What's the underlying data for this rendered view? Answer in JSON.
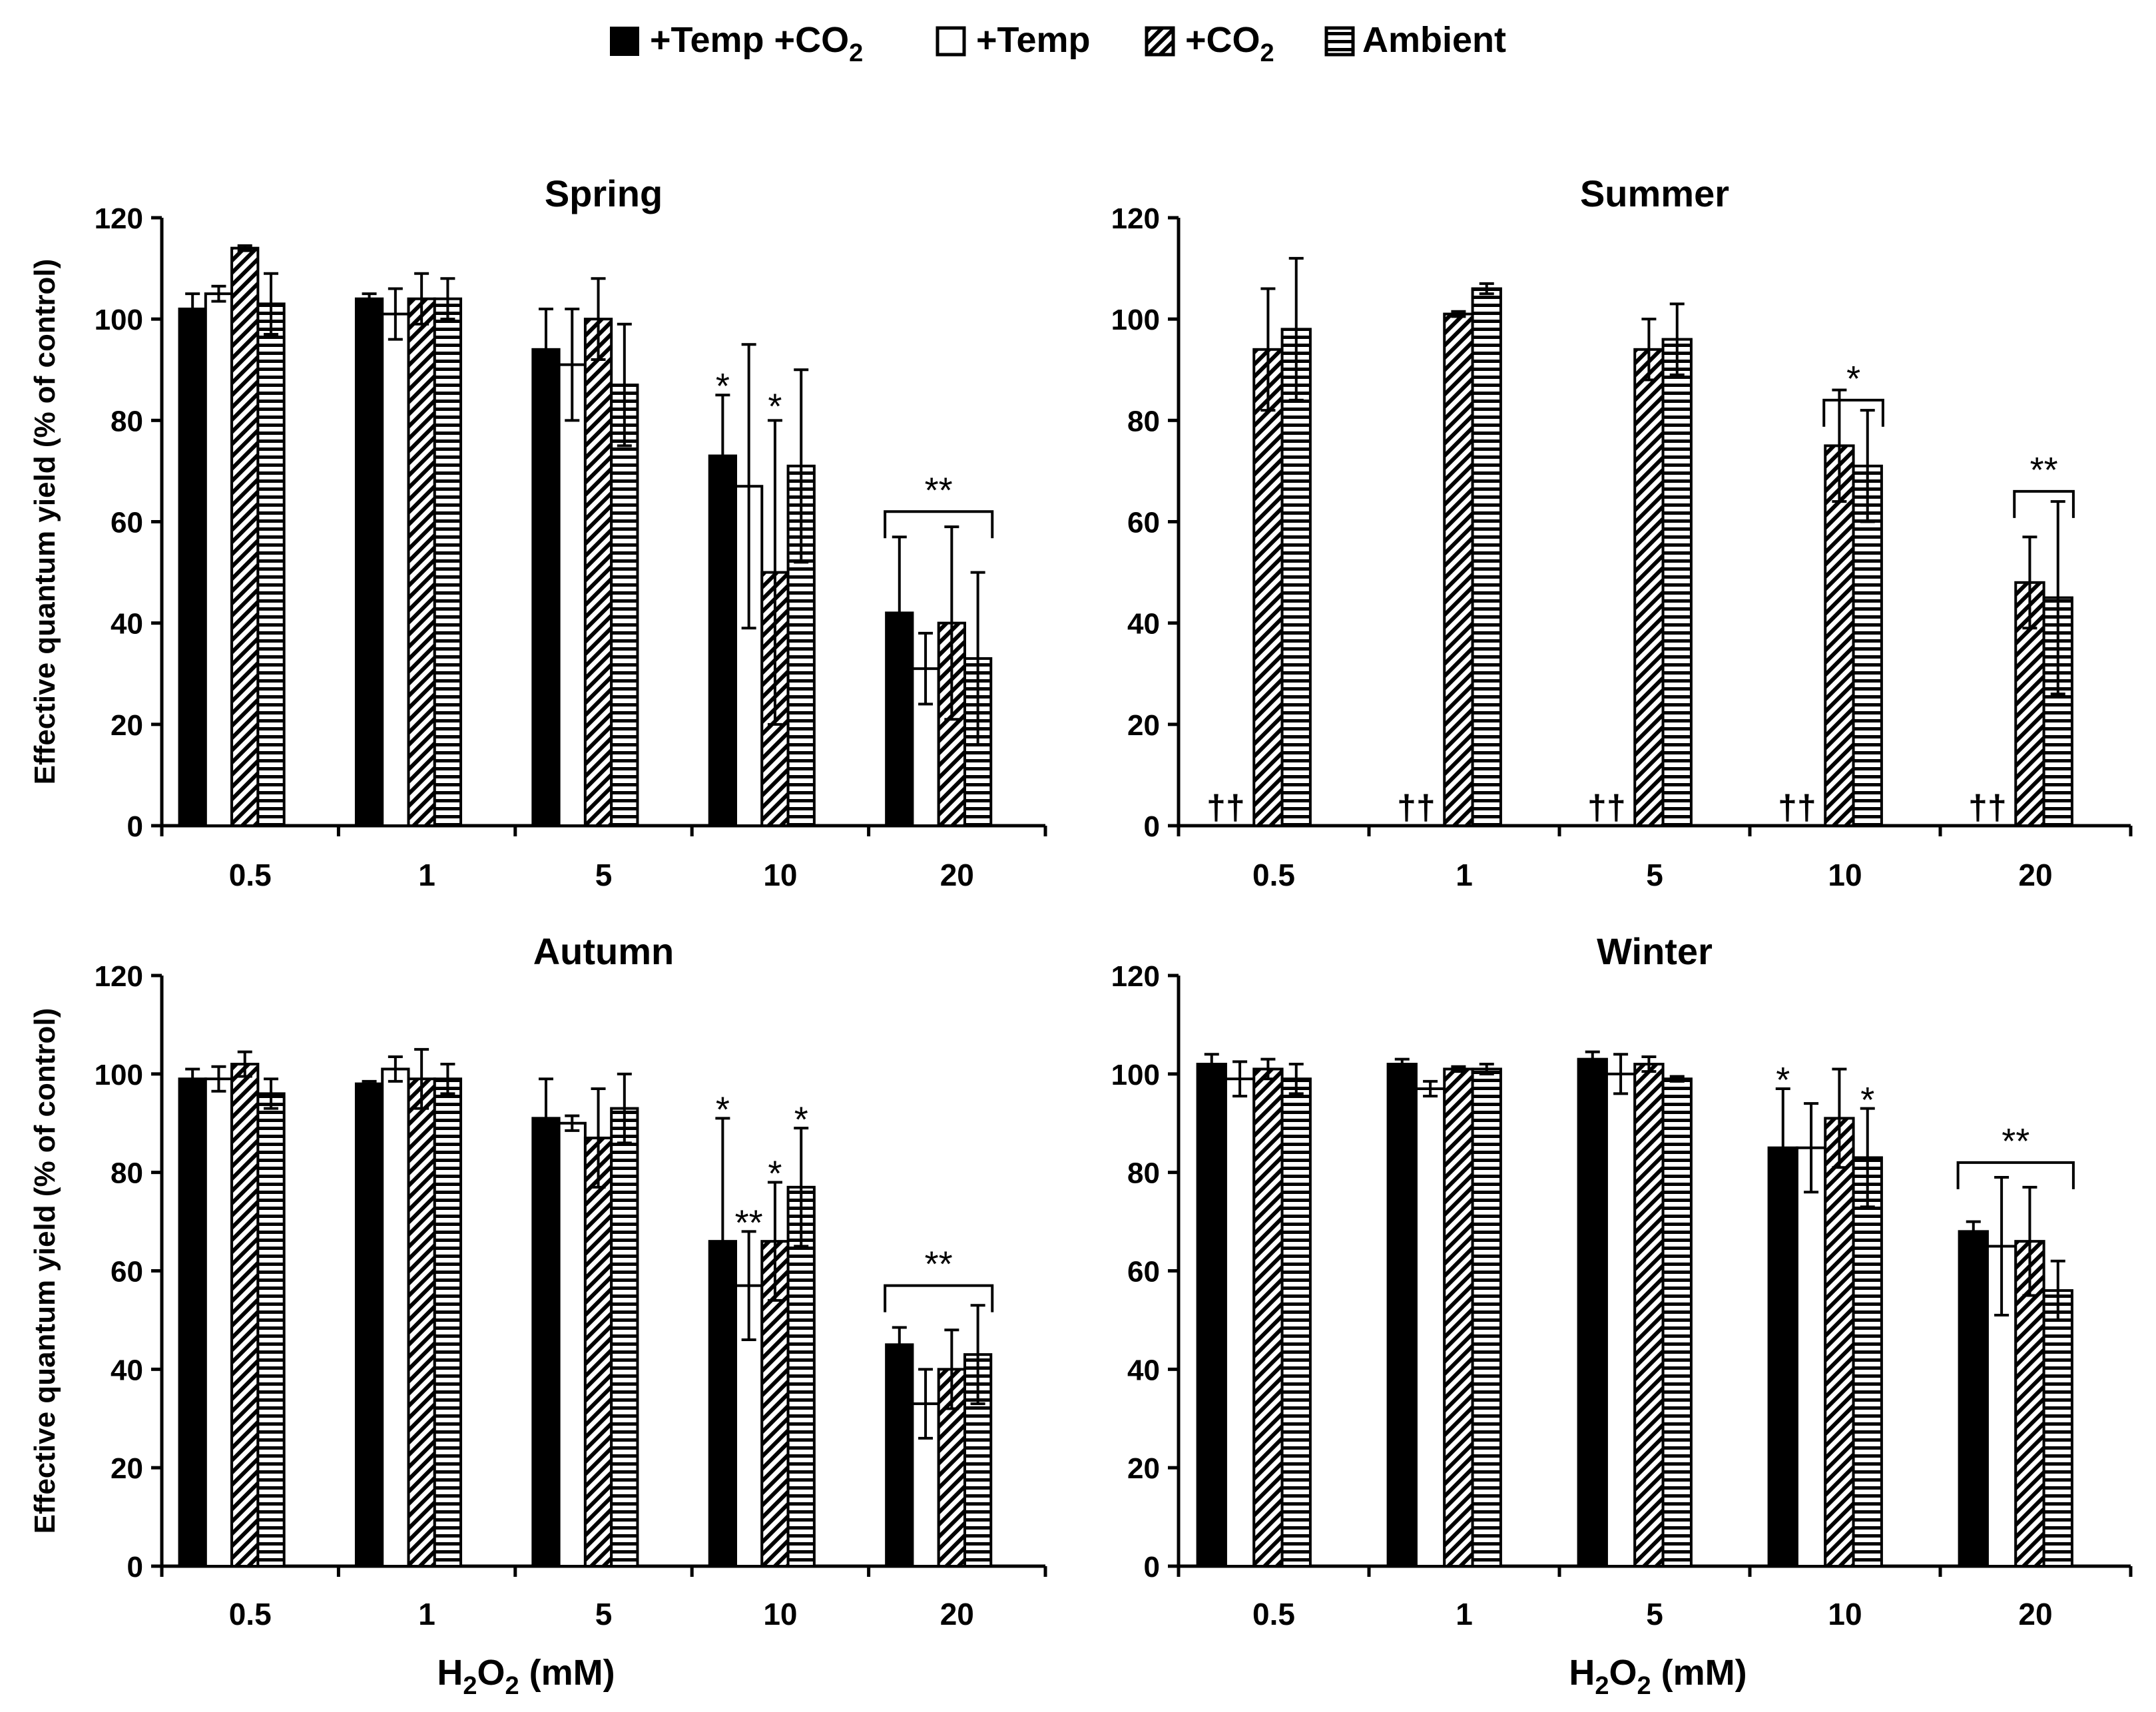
{
  "legend": {
    "items": [
      {
        "label": "+Temp +CO",
        "sub": "2",
        "pattern": "solid"
      },
      {
        "label": "+Temp",
        "sub": "",
        "pattern": "open"
      },
      {
        "label": "+CO",
        "sub": "2",
        "pattern": "diagonal"
      },
      {
        "label": "Ambient",
        "sub": "",
        "pattern": "horizontal"
      }
    ]
  },
  "colors": {
    "ink": "#000000",
    "background": "#ffffff"
  },
  "xlabel": {
    "prefix": "H",
    "sub1": "2",
    "mid": "O",
    "sub2": "2",
    "suffix": " (mM)"
  },
  "chart_data": [
    {
      "type": "bar",
      "title": "Spring",
      "ylabel": "Effective quantum yield (% of control)",
      "ylim": [
        0,
        120
      ],
      "yticks": [
        "0",
        "20",
        "40",
        "60",
        "80",
        "100",
        "120"
      ],
      "categories": [
        "0.5",
        "1",
        "5",
        "10",
        "20"
      ],
      "series": [
        {
          "name": "+Temp +CO2",
          "values": [
            102,
            104,
            94,
            73,
            42
          ],
          "errors": [
            3,
            1,
            8,
            12,
            15
          ]
        },
        {
          "name": "+Temp",
          "values": [
            105,
            101,
            91,
            67,
            31
          ],
          "errors": [
            1.5,
            5,
            11,
            28,
            7
          ]
        },
        {
          "name": "+CO2",
          "values": [
            114,
            104,
            100,
            50,
            40
          ],
          "errors": [
            0.5,
            5,
            8,
            30,
            19
          ]
        },
        {
          "name": "Ambient",
          "values": [
            103,
            104,
            87,
            71,
            33
          ],
          "errors": [
            6,
            4,
            12,
            19,
            17
          ]
        }
      ],
      "annotations": [
        {
          "text": "*",
          "category": 3,
          "series": 0,
          "y": 87
        },
        {
          "text": "*",
          "category": 3,
          "series": 2,
          "y": 83
        },
        {
          "text": "**",
          "category": 4,
          "bracket": true,
          "y": 62
        }
      ]
    },
    {
      "type": "bar",
      "title": "Summer",
      "ylabel": "",
      "ylim": [
        0,
        120
      ],
      "yticks": [
        "0",
        "20",
        "40",
        "60",
        "80",
        "100",
        "120"
      ],
      "categories": [
        "0.5",
        "1",
        "5",
        "10",
        "20"
      ],
      "series": [
        {
          "name": "+Temp +CO2",
          "values": [
            null,
            null,
            null,
            null,
            null
          ],
          "errors": [
            0,
            0,
            0,
            0,
            0
          ]
        },
        {
          "name": "+Temp",
          "values": [
            null,
            null,
            null,
            null,
            null
          ],
          "errors": [
            0,
            0,
            0,
            0,
            0
          ]
        },
        {
          "name": "+CO2",
          "values": [
            94,
            101,
            94,
            75,
            48
          ],
          "errors": [
            12,
            0.5,
            6,
            11,
            9
          ]
        },
        {
          "name": "Ambient",
          "values": [
            98,
            106,
            96,
            71,
            45
          ],
          "errors": [
            14,
            1,
            7,
            11,
            19
          ]
        }
      ],
      "annotations": [
        {
          "text": "††",
          "category": 0,
          "dagger": true
        },
        {
          "text": "††",
          "category": 1,
          "dagger": true
        },
        {
          "text": "††",
          "category": 2,
          "dagger": true
        },
        {
          "text": "††",
          "category": 3,
          "dagger": true
        },
        {
          "text": "††",
          "category": 4,
          "dagger": true
        },
        {
          "text": "*",
          "category": 3,
          "bracket": true,
          "y": 84
        },
        {
          "text": "**",
          "category": 4,
          "bracket": true,
          "y": 66
        }
      ]
    },
    {
      "type": "bar",
      "title": "Autumn",
      "ylabel": "Effective quantum yield (% of control)",
      "ylim": [
        0,
        120
      ],
      "yticks": [
        "0",
        "20",
        "40",
        "60",
        "80",
        "100",
        "120"
      ],
      "categories": [
        "0.5",
        "1",
        "5",
        "10",
        "20"
      ],
      "series": [
        {
          "name": "+Temp +CO2",
          "values": [
            99,
            98,
            91,
            66,
            45
          ],
          "errors": [
            2,
            0.5,
            8,
            25,
            3.5
          ]
        },
        {
          "name": "+Temp",
          "values": [
            99,
            101,
            90,
            57,
            33
          ],
          "errors": [
            2.5,
            2.5,
            1.5,
            11,
            7
          ]
        },
        {
          "name": "+CO2",
          "values": [
            102,
            99,
            87,
            66,
            40
          ],
          "errors": [
            2.5,
            6,
            10,
            12,
            8
          ]
        },
        {
          "name": "Ambient",
          "values": [
            96,
            99,
            93,
            77,
            43
          ],
          "errors": [
            3,
            3,
            7,
            12,
            10
          ]
        }
      ],
      "annotations": [
        {
          "text": "*",
          "category": 3,
          "series": 0,
          "y": 93
        },
        {
          "text": "**",
          "category": 3,
          "series": 1,
          "y": 70
        },
        {
          "text": "*",
          "category": 3,
          "series": 2,
          "y": 80
        },
        {
          "text": "*",
          "category": 3,
          "series": 3,
          "y": 91
        },
        {
          "text": "**",
          "category": 4,
          "bracket": true,
          "y": 57
        }
      ]
    },
    {
      "type": "bar",
      "title": "Winter",
      "ylabel": "",
      "ylim": [
        0,
        120
      ],
      "yticks": [
        "0",
        "20",
        "40",
        "60",
        "80",
        "100",
        "120"
      ],
      "categories": [
        "0.5",
        "1",
        "5",
        "10",
        "20"
      ],
      "series": [
        {
          "name": "+Temp +CO2",
          "values": [
            102,
            102,
            103,
            85,
            68
          ],
          "errors": [
            2,
            1,
            1.5,
            12,
            2
          ]
        },
        {
          "name": "+Temp",
          "values": [
            99,
            97,
            100,
            85,
            65
          ],
          "errors": [
            3.5,
            1.5,
            4,
            9,
            14
          ]
        },
        {
          "name": "+CO2",
          "values": [
            101,
            101,
            102,
            91,
            66
          ],
          "errors": [
            2,
            0.5,
            1.5,
            10,
            11
          ]
        },
        {
          "name": "Ambient",
          "values": [
            99,
            101,
            99,
            83,
            56
          ],
          "errors": [
            3,
            1,
            0.5,
            10,
            6
          ]
        }
      ],
      "annotations": [
        {
          "text": "*",
          "category": 3,
          "series": 0,
          "y": 99
        },
        {
          "text": "*",
          "category": 3,
          "series": 3,
          "y": 95
        },
        {
          "text": "**",
          "category": 4,
          "bracket": true,
          "y": 82
        }
      ]
    }
  ]
}
